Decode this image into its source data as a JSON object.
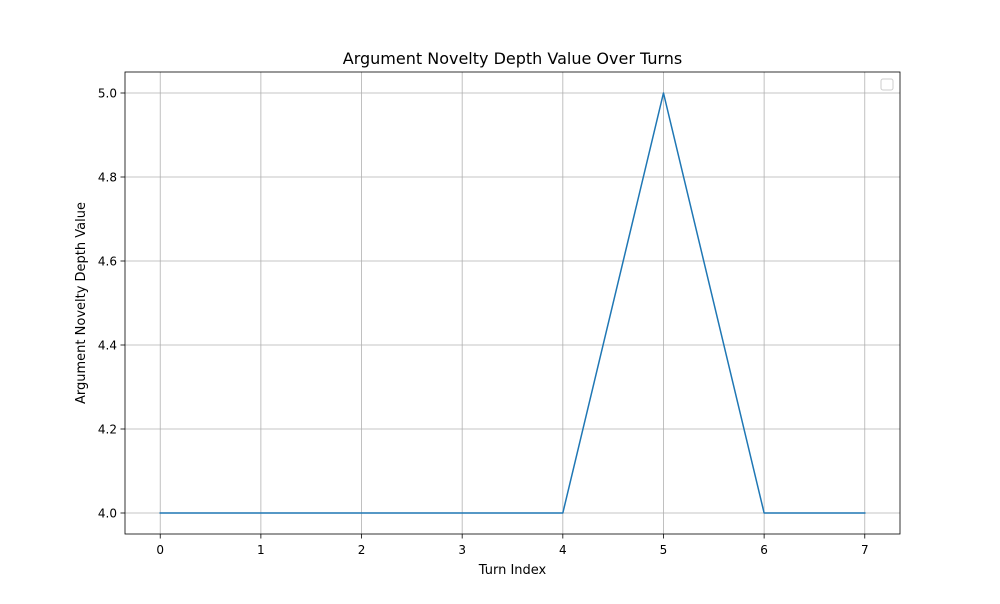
{
  "chart_data": {
    "type": "line",
    "title": "Argument Novelty Depth Value Over Turns",
    "xlabel": "Turn Index",
    "ylabel": "Argument Novelty Depth Value",
    "x": [
      0,
      1,
      2,
      3,
      4,
      5,
      6,
      7
    ],
    "series": [
      {
        "values": [
          4.0,
          4.0,
          4.0,
          4.0,
          4.0,
          5.0,
          4.0,
          4.0
        ],
        "color": "#1f77b4"
      }
    ],
    "xlim": [
      -0.35,
      7.35
    ],
    "ylim": [
      3.95,
      5.05
    ],
    "xticks": [
      0,
      1,
      2,
      3,
      4,
      5,
      6,
      7
    ],
    "xtick_labels": [
      "0",
      "1",
      "2",
      "3",
      "4",
      "5",
      "6",
      "7"
    ],
    "yticks": [
      4.0,
      4.2,
      4.4,
      4.6,
      4.8,
      5.0
    ],
    "ytick_labels": [
      "4.0",
      "4.2",
      "4.4",
      "4.6",
      "4.8",
      "5.0"
    ],
    "grid": true,
    "legend": {
      "placement": "top-right",
      "entries": []
    }
  }
}
